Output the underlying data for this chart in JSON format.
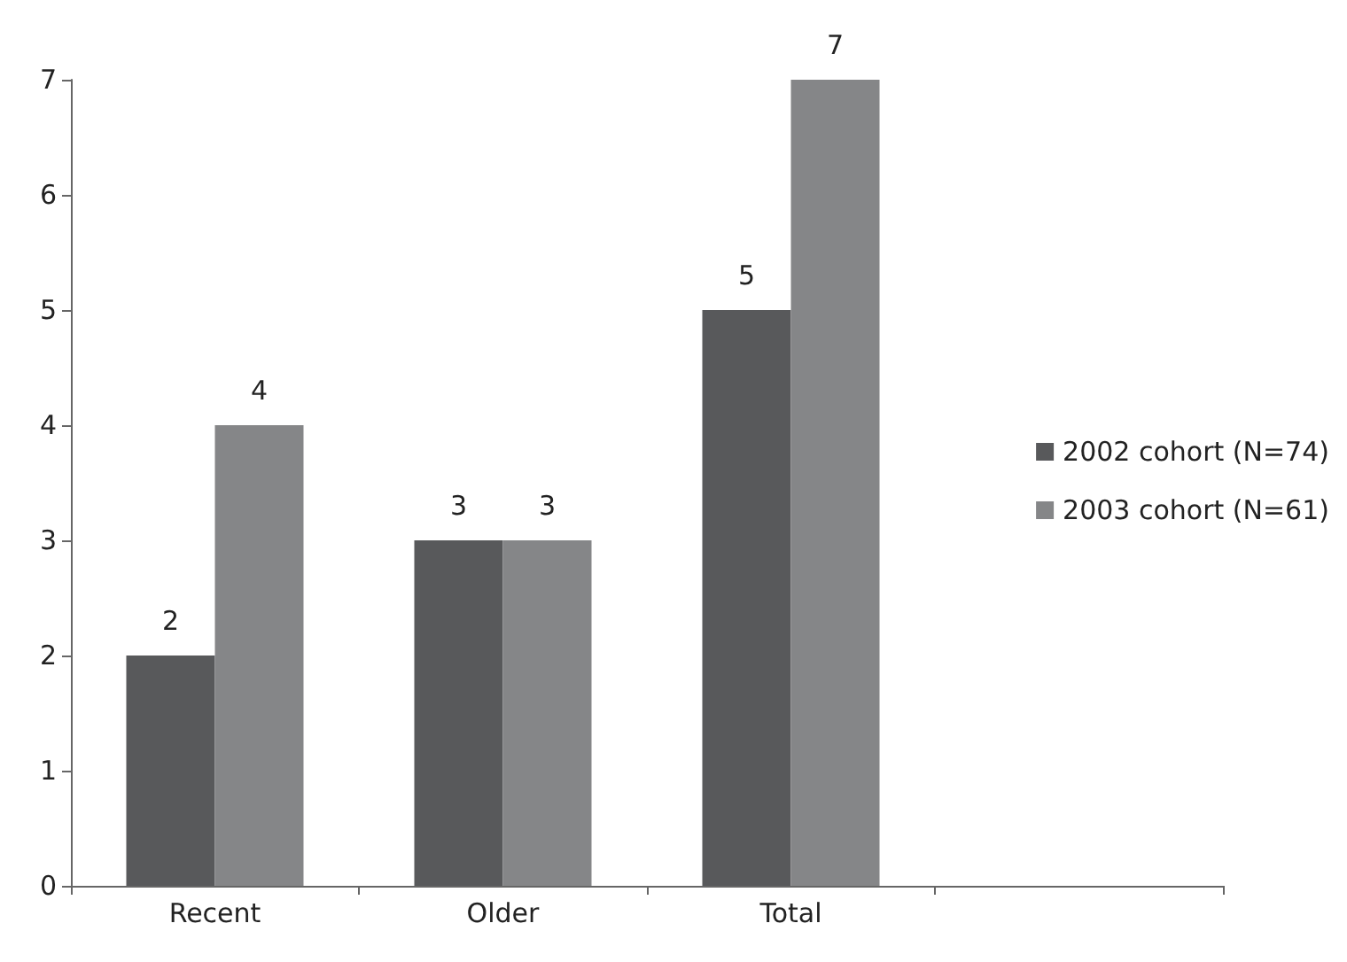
{
  "chart_data": {
    "type": "bar",
    "categories": [
      "Recent",
      "Older",
      "Total",
      null
    ],
    "series": [
      {
        "name": "2002 cohort (N=74)",
        "color": "#58595b",
        "values": [
          2,
          3,
          5,
          null
        ]
      },
      {
        "name": "2003 cohort (N=61)",
        "color": "#858688",
        "values": [
          4,
          3,
          7,
          null
        ]
      }
    ],
    "ylim": [
      0,
      7
    ],
    "yticks": [
      0,
      1,
      2,
      3,
      4,
      5,
      6,
      7
    ],
    "grid": false,
    "legend": "right",
    "data_labels": true
  }
}
